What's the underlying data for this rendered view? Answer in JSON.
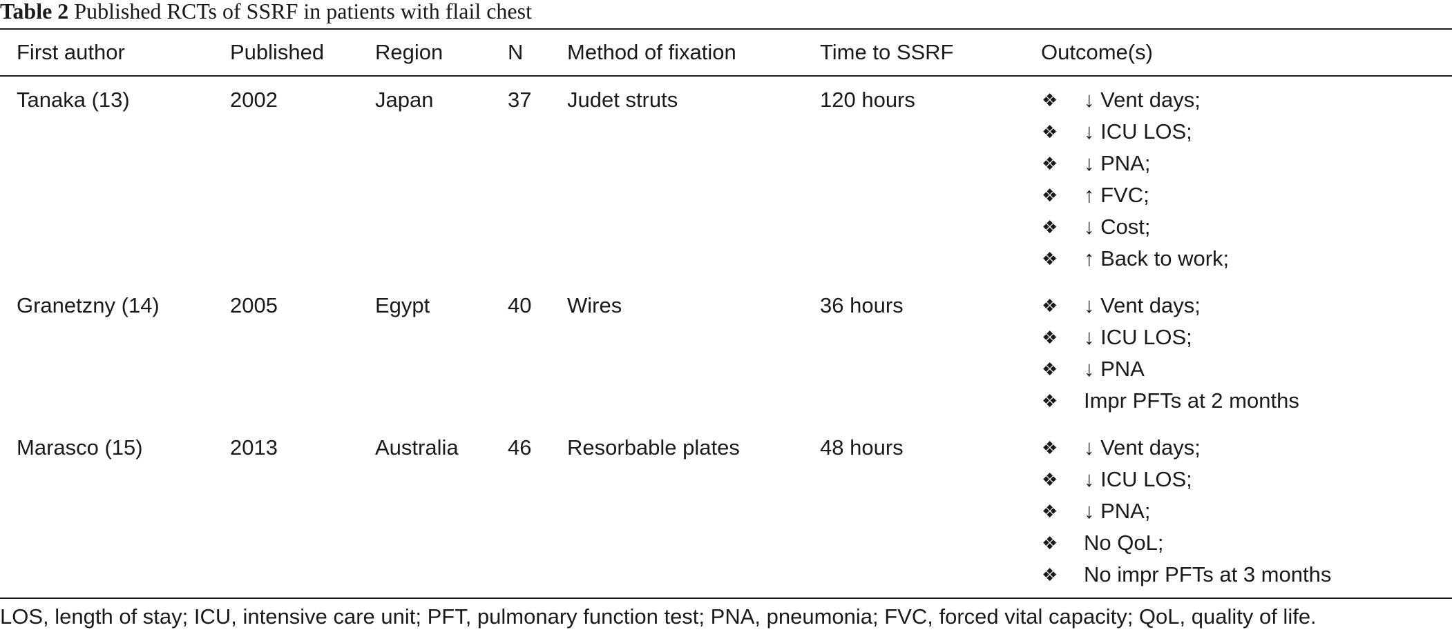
{
  "caption": {
    "label": "Table 2",
    "title": "Published RCTs of SSRF in patients with flail chest"
  },
  "columns": {
    "author": "First author",
    "published": "Published",
    "region": "Region",
    "n": "N",
    "method": "Method of fixation",
    "time": "Time to SSRF",
    "outcome": "Outcome(s)"
  },
  "bullet_symbol": "❖",
  "rows": [
    {
      "author": "Tanaka (13)",
      "published": "2002",
      "region": "Japan",
      "n": "37",
      "method": "Judet struts",
      "time": "120 hours",
      "outcomes": [
        "↓ Vent days;",
        "↓ ICU LOS;",
        "↓ PNA;",
        "↑ FVC;",
        "↓ Cost;",
        "↑ Back to work;"
      ]
    },
    {
      "author": "Granetzny (14)",
      "published": "2005",
      "region": "Egypt",
      "n": "40",
      "method": "Wires",
      "time": "36 hours",
      "outcomes": [
        "↓ Vent days;",
        "↓ ICU LOS;",
        "↓ PNA",
        "Impr PFTs at 2 months"
      ]
    },
    {
      "author": "Marasco (15)",
      "published": "2013",
      "region": "Australia",
      "n": "46",
      "method": "Resorbable plates",
      "time": "48 hours",
      "outcomes": [
        "↓ Vent days;",
        "↓ ICU LOS;",
        "↓ PNA;",
        "No QoL;",
        "No impr PFTs at 3 months"
      ]
    }
  ],
  "footnote": "LOS, length of stay; ICU, intensive care unit; PFT, pulmonary function test; PNA, pneumonia; FVC, forced vital capacity; QoL, quality of life."
}
